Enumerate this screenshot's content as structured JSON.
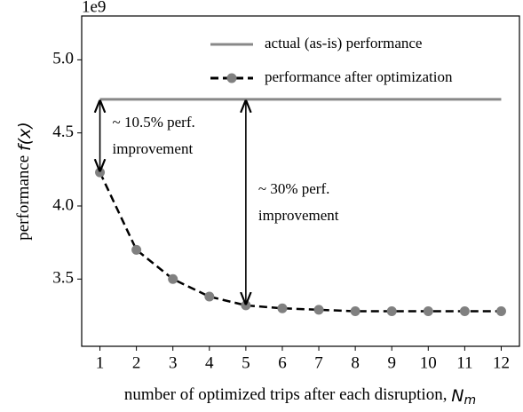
{
  "chart_data": {
    "type": "line",
    "y_offset_label": "1e9",
    "xlabel": [
      "number of optimized trips after each disruption, ",
      "N",
      "m"
    ],
    "ylabel": [
      "performance ",
      "f(x)"
    ],
    "x": [
      1,
      2,
      3,
      4,
      5,
      6,
      7,
      8,
      9,
      10,
      11,
      12
    ],
    "series": [
      {
        "name": "actual (as-is) performance",
        "color": "#888888",
        "style": "solid",
        "values": [
          4.73,
          4.73,
          4.73,
          4.73,
          4.73,
          4.73,
          4.73,
          4.73,
          4.73,
          4.73,
          4.73,
          4.73
        ]
      },
      {
        "name": "performance after optimization",
        "color": "#000000",
        "marker_color": "#808080",
        "style": "dashed",
        "values": [
          4.23,
          3.7,
          3.5,
          3.38,
          3.32,
          3.3,
          3.29,
          3.28,
          3.28,
          3.28,
          3.28,
          3.28
        ]
      }
    ],
    "xlim": [
      0.5,
      12.5
    ],
    "ylim": [
      3.04,
      5.3
    ],
    "xticks": [
      1,
      2,
      3,
      4,
      5,
      6,
      7,
      8,
      9,
      10,
      11,
      12
    ],
    "yticks": [
      3.5,
      {
        "value": 4,
        "label": "4.0"
      },
      4.5,
      {
        "value": 5,
        "label": "5.0"
      }
    ],
    "legend": "upper right",
    "annotations": [
      {
        "text": [
          "~ 10.5% perf.",
          "improvement"
        ],
        "x": 1,
        "y_from": 4.73,
        "y_to": 4.23
      },
      {
        "text": [
          "~ 30% perf.",
          "improvement"
        ],
        "x": 5,
        "y_from": 4.73,
        "y_to": 3.32
      }
    ]
  }
}
